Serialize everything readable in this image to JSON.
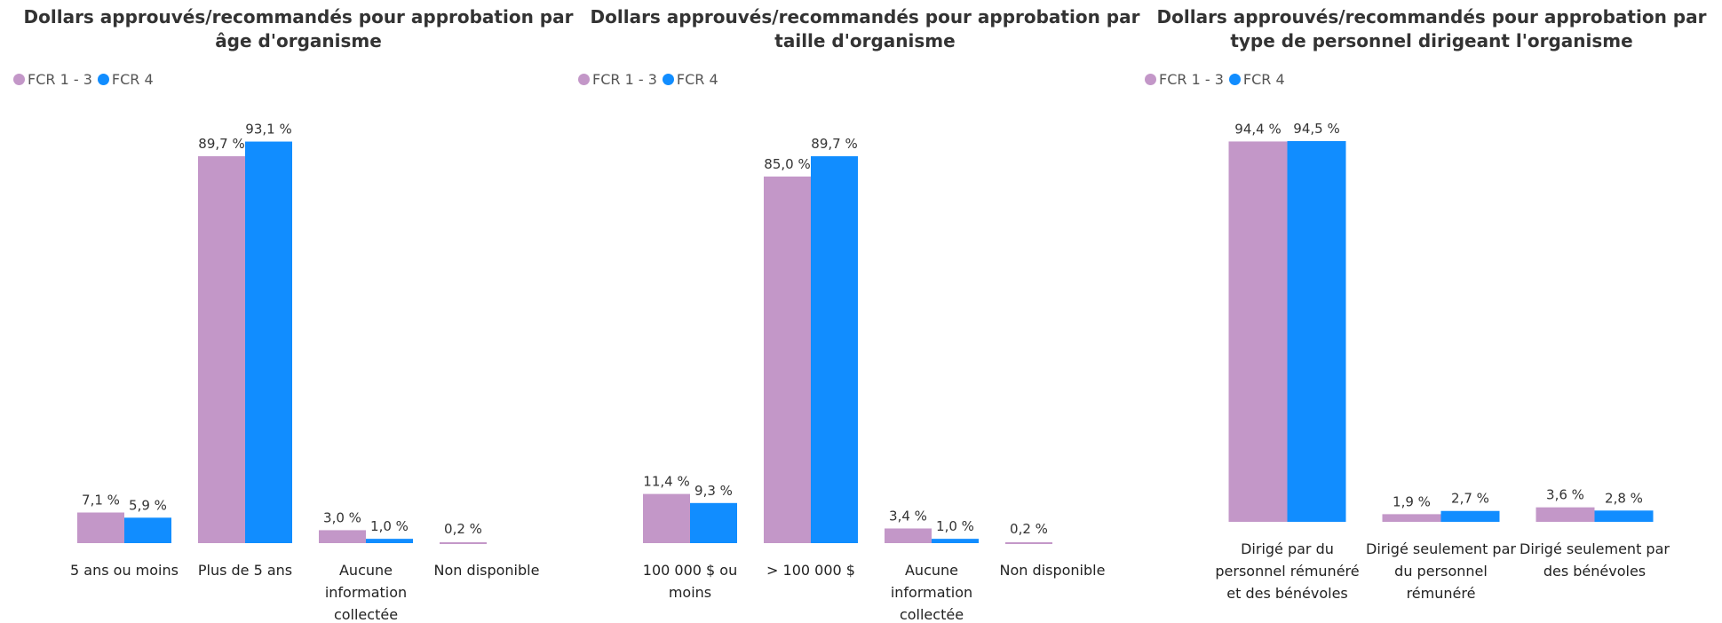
{
  "chart_data": [
    {
      "type": "bar",
      "title": "Dollars approuvés/recommandés pour approbation par âge d'organisme",
      "categories": [
        "5 ans ou moins",
        "Plus de 5 ans",
        "Aucune information collectée",
        "Non disponible"
      ],
      "series": [
        {
          "name": "FCR 1 - 3",
          "color": "#c397c8",
          "values": [
            7.1,
            89.7,
            3.0,
            0.2
          ],
          "value_labels": [
            "7,1 %",
            "89,7 %",
            "3,0 %",
            "0,2 %"
          ]
        },
        {
          "name": "FCR 4",
          "color": "#118dff",
          "values": [
            5.9,
            93.1,
            1.0,
            null
          ],
          "value_labels": [
            "5,9 %",
            "93,1 %",
            "1,0 %",
            null
          ]
        }
      ],
      "ylim": [
        0,
        100
      ]
    },
    {
      "type": "bar",
      "title": "Dollars approuvés/recommandés pour approbation par taille d'organisme",
      "categories": [
        "100 000 $ ou moins",
        "> 100 000 $",
        "Aucune information collectée",
        "Non disponible"
      ],
      "series": [
        {
          "name": "FCR 1 - 3",
          "color": "#c397c8",
          "values": [
            11.4,
            85.0,
            3.4,
            0.2
          ],
          "value_labels": [
            "11,4 %",
            "85,0 %",
            "3,4 %",
            "0,2 %"
          ]
        },
        {
          "name": "FCR 4",
          "color": "#118dff",
          "values": [
            9.3,
            89.7,
            1.0,
            null
          ],
          "value_labels": [
            "9,3 %",
            "89,7 %",
            "1,0 %",
            null
          ]
        }
      ],
      "ylim": [
        0,
        100
      ]
    },
    {
      "type": "bar",
      "title": "Dollars approuvés/recommandés pour approbation par type de personnel dirigeant l'organisme",
      "categories": [
        "Dirigé par du personnel rémunéré et des bénévoles",
        "Dirigé seulement par du personnel rémunéré",
        "Dirigé seulement par des bénévoles"
      ],
      "series": [
        {
          "name": "FCR 1 - 3",
          "color": "#c397c8",
          "values": [
            94.4,
            1.9,
            3.6
          ],
          "value_labels": [
            "94,4 %",
            "1,9 %",
            "3,6 %"
          ]
        },
        {
          "name": "FCR 4",
          "color": "#118dff",
          "values": [
            94.5,
            2.7,
            2.8
          ],
          "value_labels": [
            "94,5 %",
            "2,7 %",
            "2,8 %"
          ]
        }
      ],
      "ylim": [
        0,
        100
      ]
    }
  ]
}
